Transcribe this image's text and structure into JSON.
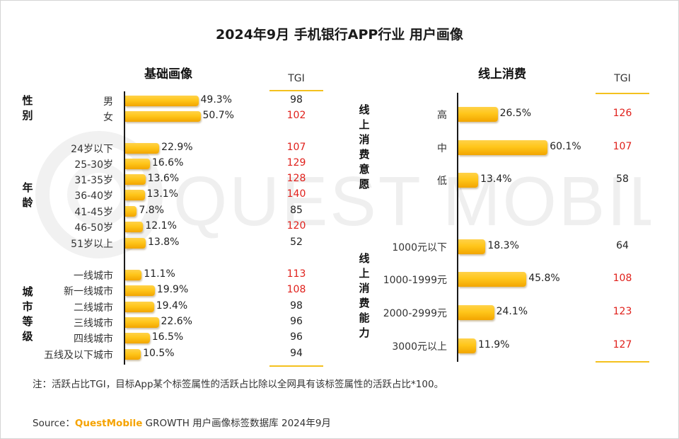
{
  "title": "2024年9月 手机银行APP行业 用户画像",
  "watermark_text": "QUEST MOBILE",
  "tgi_header": "TGI",
  "note": "注：活跃占比TGI，目标App某个标签属性的活跃占比除以全网具有该标签属性的活跃占比*100。",
  "source": {
    "prefix": "Source：",
    "brand": "QuestMobile",
    "suffix": " GROWTH 用户画像标签数据库 2024年9月"
  },
  "colors": {
    "bar": "#ffc61a",
    "tgi_high": "#e0201b",
    "accent_line": "#f4c11e"
  },
  "chart_data": [
    {
      "type": "bar",
      "orientation": "horizontal",
      "title": "基础画像",
      "unit": "%",
      "groups": [
        {
          "label": "性别",
          "categories": [
            "男",
            "女"
          ],
          "values": [
            49.3,
            50.7
          ],
          "labels": [
            "49.3%",
            "50.7%"
          ],
          "tgi": [
            98,
            102
          ]
        },
        {
          "label": "年龄",
          "categories": [
            "24岁以下",
            "25-30岁",
            "31-35岁",
            "36-40岁",
            "41-45岁",
            "46-50岁",
            "51岁以上"
          ],
          "values": [
            22.9,
            16.6,
            13.6,
            13.1,
            7.8,
            12.1,
            13.8
          ],
          "labels": [
            "22.9%",
            "16.6%",
            "13.6%",
            "13.1%",
            "7.8%",
            "12.1%",
            "13.8%"
          ],
          "tgi": [
            107,
            129,
            128,
            140,
            85,
            120,
            52
          ]
        },
        {
          "label": "城市等级",
          "categories": [
            "一线城市",
            "新一线城市",
            "二线城市",
            "三线城市",
            "四线城市",
            "五线及以下城市"
          ],
          "values": [
            11.1,
            19.9,
            19.4,
            22.6,
            16.5,
            10.5
          ],
          "labels": [
            "11.1%",
            "19.9%",
            "19.4%",
            "22.6%",
            "16.5%",
            "10.5%"
          ],
          "tgi": [
            113,
            108,
            98,
            96,
            96,
            94
          ]
        }
      ]
    },
    {
      "type": "bar",
      "orientation": "horizontal",
      "title": "线上消费",
      "unit": "%",
      "groups": [
        {
          "label": "线上消费意愿",
          "categories": [
            "高",
            "中",
            "低"
          ],
          "values": [
            26.5,
            60.1,
            13.4
          ],
          "labels": [
            "26.5%",
            "60.1%",
            "13.4%"
          ],
          "tgi": [
            126,
            107,
            58
          ]
        },
        {
          "label": "线上消费能力",
          "categories": [
            "1000元以下",
            "1000-1999元",
            "2000-2999元",
            "3000元以上"
          ],
          "values": [
            18.3,
            45.8,
            24.1,
            11.9
          ],
          "labels": [
            "18.3%",
            "45.8%",
            "24.1%",
            "11.9%"
          ],
          "tgi": [
            64,
            108,
            123,
            127
          ]
        }
      ]
    }
  ]
}
